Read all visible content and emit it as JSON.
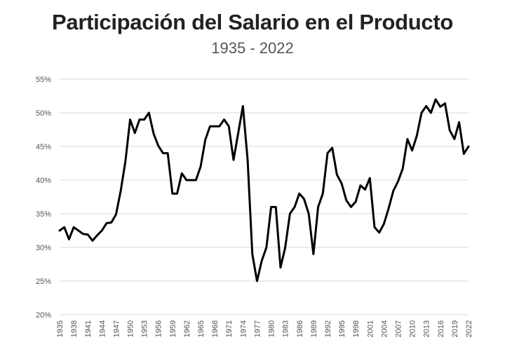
{
  "chart_data": {
    "type": "line",
    "title": "Participación del Salario en el Producto",
    "subtitle": "1935 - 2022",
    "xlabel": "",
    "ylabel": "",
    "ylim": [
      0.2,
      0.55
    ],
    "yticks": [
      0.2,
      0.25,
      0.3,
      0.35,
      0.4,
      0.45,
      0.5,
      0.55
    ],
    "ytick_labels": [
      "20%",
      "25%",
      "30%",
      "35%",
      "40%",
      "45%",
      "50%",
      "55%"
    ],
    "xtick_labels": [
      "1935",
      "1938",
      "1941",
      "1944",
      "1947",
      "1950",
      "1953",
      "1956",
      "1959",
      "1962",
      "1965",
      "1968",
      "1971",
      "1974",
      "1977",
      "1980",
      "1983",
      "1986",
      "1989",
      "1992",
      "1995",
      "1998",
      "2001",
      "2004",
      "2007",
      "2010",
      "2013",
      "2016",
      "2019",
      "2022"
    ],
    "grid": true,
    "legend": "none",
    "line_color": "#000000",
    "x": [
      1935,
      1936,
      1937,
      1938,
      1939,
      1940,
      1941,
      1942,
      1943,
      1944,
      1945,
      1946,
      1947,
      1948,
      1949,
      1950,
      1951,
      1952,
      1953,
      1954,
      1955,
      1956,
      1957,
      1958,
      1959,
      1960,
      1961,
      1962,
      1963,
      1964,
      1965,
      1966,
      1967,
      1968,
      1969,
      1970,
      1971,
      1972,
      1973,
      1974,
      1975,
      1976,
      1977,
      1978,
      1979,
      1980,
      1981,
      1982,
      1983,
      1984,
      1985,
      1986,
      1987,
      1988,
      1989,
      1990,
      1991,
      1992,
      1993,
      1994,
      1995,
      1996,
      1997,
      1998,
      1999,
      2000,
      2001,
      2002,
      2003,
      2004,
      2005,
      2006,
      2007,
      2008,
      2009,
      2010,
      2011,
      2012,
      2013,
      2014,
      2015,
      2016,
      2017,
      2018,
      2019,
      2020,
      2021,
      2022
    ],
    "series": [
      {
        "values": [
          0.325,
          0.33,
          0.312,
          0.33,
          0.325,
          0.32,
          0.319,
          0.31,
          0.318,
          0.325,
          0.336,
          0.337,
          0.349,
          0.384,
          0.428,
          0.49,
          0.47,
          0.49,
          0.49,
          0.5,
          0.469,
          0.451,
          0.44,
          0.44,
          0.38,
          0.38,
          0.41,
          0.4,
          0.4,
          0.4,
          0.42,
          0.46,
          0.48,
          0.48,
          0.48,
          0.49,
          0.48,
          0.43,
          0.47,
          0.51,
          0.43,
          0.29,
          0.25,
          0.28,
          0.3,
          0.36,
          0.36,
          0.27,
          0.3,
          0.35,
          0.36,
          0.38,
          0.372,
          0.35,
          0.29,
          0.36,
          0.38,
          0.44,
          0.448,
          0.408,
          0.395,
          0.37,
          0.36,
          0.368,
          0.392,
          0.386,
          0.403,
          0.33,
          0.322,
          0.335,
          0.358,
          0.384,
          0.398,
          0.417,
          0.461,
          0.444,
          0.466,
          0.5,
          0.51,
          0.5,
          0.52,
          0.509,
          0.514,
          0.474,
          0.461,
          0.486,
          0.439,
          0.45
        ]
      }
    ]
  }
}
